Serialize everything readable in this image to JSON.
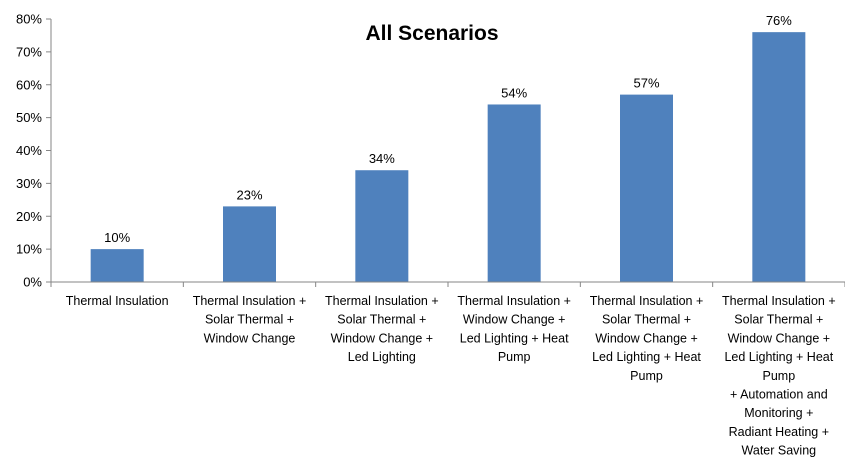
{
  "chart_data": {
    "type": "bar",
    "title": "All Scenarios",
    "xlabel": "",
    "ylabel": "",
    "ylim": [
      0,
      80
    ],
    "y_ticks": [
      "0%",
      "10%",
      "20%",
      "30%",
      "40%",
      "50%",
      "60%",
      "70%",
      "80%"
    ],
    "y_tick_values": [
      0,
      10,
      20,
      30,
      40,
      50,
      60,
      70,
      80
    ],
    "grid": false,
    "legend": "none",
    "bar_color": "#4F81BD",
    "categories": [
      "Thermal Insulation",
      "Thermal Insulation + Solar Thermal + Window Change",
      "Thermal Insulation + Solar Thermal + Window Change + Led Lighting",
      "Thermal Insulation + Window Change + Led Lighting + Heat Pump",
      "Thermal Insulation + Solar Thermal + Window Change + Led Lighting + Heat Pump",
      "Thermal Insulation + Solar Thermal + Window Change + Led Lighting + Heat Pump + Automation and Monitoring + Radiant Heating + Water Saving"
    ],
    "category_lines": [
      [
        "Thermal Insulation"
      ],
      [
        "Thermal Insulation +",
        "Solar Thermal +",
        "Window Change"
      ],
      [
        "Thermal Insulation +",
        "Solar Thermal +",
        "Window Change +",
        "Led Lighting"
      ],
      [
        "Thermal Insulation +",
        "Window Change +",
        "Led Lighting + Heat",
        "Pump"
      ],
      [
        "Thermal Insulation +",
        "Solar Thermal +",
        "Window Change +",
        "Led Lighting + Heat",
        "Pump"
      ],
      [
        "Thermal Insulation +",
        "Solar Thermal +",
        "Window Change +",
        "Led Lighting + Heat",
        "Pump",
        "+ Automation and",
        "Monitoring +",
        "Radiant Heating +",
        "Water Saving"
      ]
    ],
    "values": [
      10,
      23,
      34,
      54,
      57,
      76
    ],
    "data_labels": [
      "10%",
      "23%",
      "34%",
      "54%",
      "57%",
      "76%"
    ]
  }
}
